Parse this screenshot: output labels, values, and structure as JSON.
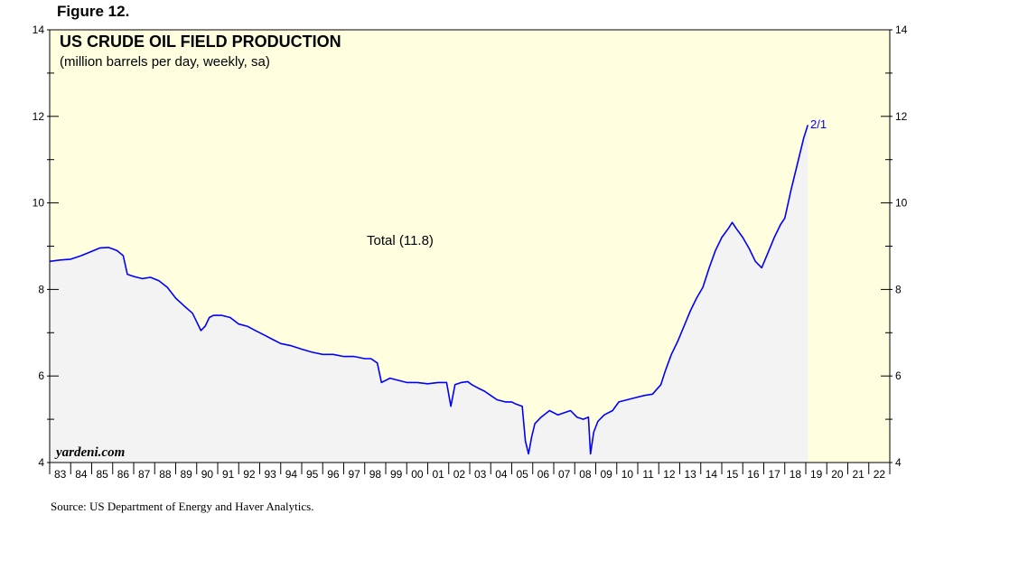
{
  "figure_label": "Figure 12.",
  "source": "Source: US Department of Energy and Haver Analytics.",
  "colors": {
    "plot_bg": "#FFFFE0",
    "area_fill": "#F3F3F4",
    "line": "#0000FF",
    "axis": "#000000"
  },
  "chart_data": {
    "type": "line",
    "title": "US CRUDE OIL FIELD PRODUCTION",
    "subtitle": "(million barrels per day, weekly, sa)",
    "series": [
      {
        "name": "Total (11.8)",
        "end_label": "2/1",
        "area_fill": true,
        "points": [
          [
            1983.0,
            8.65
          ],
          [
            1983.5,
            8.68
          ],
          [
            1984.0,
            8.7
          ],
          [
            1984.5,
            8.78
          ],
          [
            1985.0,
            8.88
          ],
          [
            1985.4,
            8.96
          ],
          [
            1985.8,
            8.97
          ],
          [
            1986.2,
            8.9
          ],
          [
            1986.5,
            8.78
          ],
          [
            1986.7,
            8.35
          ],
          [
            1987.0,
            8.3
          ],
          [
            1987.4,
            8.25
          ],
          [
            1987.8,
            8.28
          ],
          [
            1988.2,
            8.2
          ],
          [
            1988.6,
            8.05
          ],
          [
            1989.0,
            7.8
          ],
          [
            1989.4,
            7.62
          ],
          [
            1989.8,
            7.45
          ],
          [
            1990.0,
            7.25
          ],
          [
            1990.2,
            7.05
          ],
          [
            1990.4,
            7.15
          ],
          [
            1990.6,
            7.35
          ],
          [
            1990.8,
            7.4
          ],
          [
            1991.2,
            7.4
          ],
          [
            1991.6,
            7.35
          ],
          [
            1992.0,
            7.2
          ],
          [
            1992.4,
            7.15
          ],
          [
            1992.8,
            7.05
          ],
          [
            1993.2,
            6.95
          ],
          [
            1993.6,
            6.85
          ],
          [
            1994.0,
            6.75
          ],
          [
            1994.5,
            6.7
          ],
          [
            1995.0,
            6.62
          ],
          [
            1995.5,
            6.55
          ],
          [
            1996.0,
            6.5
          ],
          [
            1996.5,
            6.5
          ],
          [
            1997.0,
            6.45
          ],
          [
            1997.5,
            6.45
          ],
          [
            1998.0,
            6.4
          ],
          [
            1998.3,
            6.4
          ],
          [
            1998.6,
            6.3
          ],
          [
            1998.8,
            5.85
          ],
          [
            1999.2,
            5.95
          ],
          [
            1999.6,
            5.9
          ],
          [
            2000.0,
            5.85
          ],
          [
            2000.5,
            5.85
          ],
          [
            2001.0,
            5.82
          ],
          [
            2001.5,
            5.85
          ],
          [
            2001.9,
            5.85
          ],
          [
            2002.1,
            5.3
          ],
          [
            2002.3,
            5.8
          ],
          [
            2002.6,
            5.85
          ],
          [
            2002.9,
            5.87
          ],
          [
            2003.1,
            5.8
          ],
          [
            2003.4,
            5.72
          ],
          [
            2003.7,
            5.65
          ],
          [
            2004.0,
            5.55
          ],
          [
            2004.3,
            5.45
          ],
          [
            2004.7,
            5.4
          ],
          [
            2005.0,
            5.4
          ],
          [
            2005.2,
            5.35
          ],
          [
            2005.5,
            5.3
          ],
          [
            2005.65,
            4.5
          ],
          [
            2005.8,
            4.2
          ],
          [
            2005.95,
            4.6
          ],
          [
            2006.1,
            4.9
          ],
          [
            2006.4,
            5.05
          ],
          [
            2006.8,
            5.2
          ],
          [
            2007.2,
            5.1
          ],
          [
            2007.5,
            5.15
          ],
          [
            2007.8,
            5.2
          ],
          [
            2008.1,
            5.05
          ],
          [
            2008.4,
            5.0
          ],
          [
            2008.65,
            5.05
          ],
          [
            2008.75,
            4.2
          ],
          [
            2008.9,
            4.7
          ],
          [
            2009.1,
            4.95
          ],
          [
            2009.4,
            5.1
          ],
          [
            2009.8,
            5.2
          ],
          [
            2010.1,
            5.4
          ],
          [
            2010.5,
            5.45
          ],
          [
            2010.9,
            5.5
          ],
          [
            2011.3,
            5.55
          ],
          [
            2011.7,
            5.58
          ],
          [
            2012.1,
            5.8
          ],
          [
            2012.3,
            6.1
          ],
          [
            2012.6,
            6.5
          ],
          [
            2012.9,
            6.8
          ],
          [
            2013.2,
            7.15
          ],
          [
            2013.5,
            7.5
          ],
          [
            2013.8,
            7.8
          ],
          [
            2014.1,
            8.05
          ],
          [
            2014.4,
            8.5
          ],
          [
            2014.7,
            8.9
          ],
          [
            2015.0,
            9.2
          ],
          [
            2015.3,
            9.4
          ],
          [
            2015.5,
            9.55
          ],
          [
            2015.7,
            9.4
          ],
          [
            2016.0,
            9.2
          ],
          [
            2016.3,
            8.95
          ],
          [
            2016.6,
            8.65
          ],
          [
            2016.9,
            8.5
          ],
          [
            2017.2,
            8.85
          ],
          [
            2017.5,
            9.2
          ],
          [
            2017.8,
            9.5
          ],
          [
            2018.0,
            9.65
          ],
          [
            2018.3,
            10.3
          ],
          [
            2018.6,
            10.9
          ],
          [
            2018.9,
            11.5
          ],
          [
            2019.1,
            11.8
          ]
        ]
      }
    ],
    "annotations": [
      {
        "text": "Total (11.8)"
      },
      {
        "text": "yardeni.com"
      }
    ],
    "xlim": [
      1983,
      2023
    ],
    "ylim": [
      4,
      14
    ],
    "y_ticks": [
      "4",
      "6",
      "8",
      "10",
      "12",
      "14"
    ],
    "x_tick_labels": [
      "83",
      "84",
      "85",
      "86",
      "87",
      "88",
      "89",
      "90",
      "91",
      "92",
      "93",
      "94",
      "95",
      "96",
      "97",
      "98",
      "99",
      "00",
      "01",
      "02",
      "03",
      "04",
      "05",
      "06",
      "07",
      "08",
      "09",
      "10",
      "11",
      "12",
      "13",
      "14",
      "15",
      "16",
      "17",
      "18",
      "19",
      "20",
      "21",
      "22"
    ],
    "xlabel": "",
    "ylabel": ""
  }
}
